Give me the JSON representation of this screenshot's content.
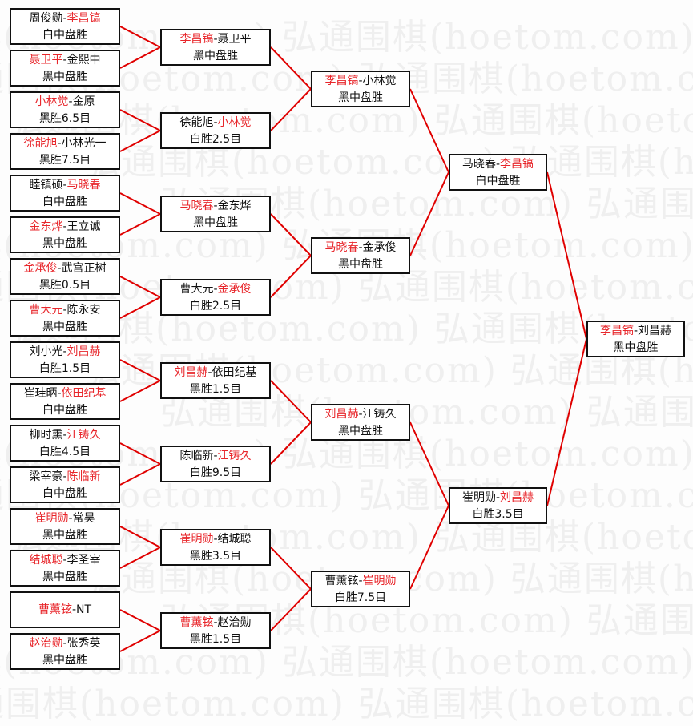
{
  "watermark": "弘通围棋(hoetom.com)",
  "colors": {
    "winner": "#e8262b",
    "line": "#e00000",
    "text": "#111111"
  },
  "rounds": [
    [
      {
        "players": [
          "周俊勋",
          "李昌镐"
        ],
        "winner": 1,
        "result": "白中盘胜"
      },
      {
        "players": [
          "聂卫平",
          "金熙中"
        ],
        "winner": 0,
        "result": "黑中盘胜"
      },
      {
        "players": [
          "小林觉",
          "金原"
        ],
        "winner": 0,
        "result": "黑胜6.5目"
      },
      {
        "players": [
          "徐能旭",
          "小林光一"
        ],
        "winner": 0,
        "result": "黑胜7.5目"
      },
      {
        "players": [
          "睦镇硕",
          "马晓春"
        ],
        "winner": 1,
        "result": "白中盘胜"
      },
      {
        "players": [
          "金东烨",
          "王立诚"
        ],
        "winner": 0,
        "result": "黑中盘胜"
      },
      {
        "players": [
          "金承俊",
          "武宫正树"
        ],
        "winner": 0,
        "result": "黑胜0.5目"
      },
      {
        "players": [
          "曹大元",
          "陈永安"
        ],
        "winner": 0,
        "result": "黑中盘胜"
      },
      {
        "players": [
          "刘小光",
          "刘昌赫"
        ],
        "winner": 1,
        "result": "白胜1.5目"
      },
      {
        "players": [
          "崔珪昞",
          "依田纪基"
        ],
        "winner": 1,
        "result": "白中盘胜"
      },
      {
        "players": [
          "柳时熏",
          "江铸久"
        ],
        "winner": 1,
        "result": "白胜4.5目"
      },
      {
        "players": [
          "梁宰豪",
          "陈临新"
        ],
        "winner": 1,
        "result": "白中盘胜"
      },
      {
        "players": [
          "崔明勋",
          "常昊"
        ],
        "winner": 0,
        "result": "黑中盘胜"
      },
      {
        "players": [
          "结城聪",
          "李圣宰"
        ],
        "winner": 0,
        "result": "黑中盘胜"
      },
      {
        "players": [
          "曹薰铉",
          "NT"
        ],
        "winner": 0,
        "result": ""
      },
      {
        "players": [
          "赵治勋",
          "张秀英"
        ],
        "winner": 0,
        "result": "黑中盘胜"
      }
    ],
    [
      {
        "players": [
          "李昌镐",
          "聂卫平"
        ],
        "winner": 0,
        "result": "黑中盘胜"
      },
      {
        "players": [
          "徐能旭",
          "小林觉"
        ],
        "winner": 1,
        "result": "白胜2.5目"
      },
      {
        "players": [
          "马晓春",
          "金东烨"
        ],
        "winner": 0,
        "result": "黑中盘胜"
      },
      {
        "players": [
          "曹大元",
          "金承俊"
        ],
        "winner": 1,
        "result": "白胜2.5目"
      },
      {
        "players": [
          "刘昌赫",
          "依田纪基"
        ],
        "winner": 0,
        "result": "黑胜1.5目"
      },
      {
        "players": [
          "陈临新",
          "江铸久"
        ],
        "winner": 1,
        "result": "白胜9.5目"
      },
      {
        "players": [
          "崔明勋",
          "结城聪"
        ],
        "winner": 0,
        "result": "黑胜3.5目"
      },
      {
        "players": [
          "曹薰铉",
          "赵治勋"
        ],
        "winner": 0,
        "result": "黑胜1.5目"
      }
    ],
    [
      {
        "players": [
          "李昌镐",
          "小林觉"
        ],
        "winner": 0,
        "result": "黑中盘胜"
      },
      {
        "players": [
          "马晓春",
          "金承俊"
        ],
        "winner": 0,
        "result": "黑中盘胜"
      },
      {
        "players": [
          "刘昌赫",
          "江铸久"
        ],
        "winner": 0,
        "result": "黑中盘胜"
      },
      {
        "players": [
          "曹薰铉",
          "崔明勋"
        ],
        "winner": 1,
        "result": "白胜7.5目"
      }
    ],
    [
      {
        "players": [
          "马晓春",
          "李昌镐"
        ],
        "winner": 1,
        "result": "白中盘胜"
      },
      {
        "players": [
          "崔明勋",
          "刘昌赫"
        ],
        "winner": 1,
        "result": "白胜3.5目"
      }
    ],
    [
      {
        "players": [
          "李昌镐",
          "刘昌赫"
        ],
        "winner": 0,
        "result": "黑中盘胜"
      }
    ]
  ]
}
